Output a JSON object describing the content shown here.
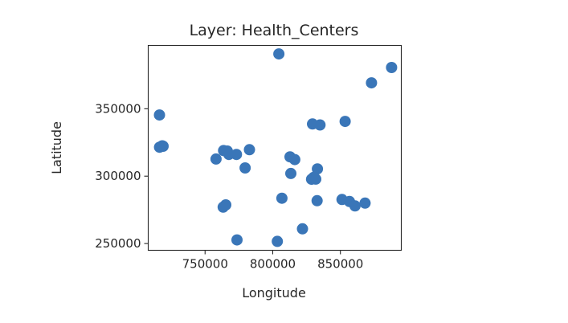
{
  "chart_data": {
    "type": "scatter",
    "title": "Layer: Health_Centers",
    "xlabel": "Longitude",
    "ylabel": "Latitude",
    "xlim": [
      708000,
      895000
    ],
    "ylim": [
      245000,
      397000
    ],
    "xticks": [
      {
        "value": 750000,
        "label": "750000"
      },
      {
        "value": 800000,
        "label": "800000"
      },
      {
        "value": 850000,
        "label": "850000"
      }
    ],
    "yticks": [
      {
        "value": 250000,
        "label": "250000"
      },
      {
        "value": 300000,
        "label": "300000"
      },
      {
        "value": 350000,
        "label": "350000"
      }
    ],
    "grid": false,
    "marker_color": "#3a76b8",
    "points": [
      {
        "x": 804500,
        "y": 390700
      },
      {
        "x": 873000,
        "y": 369200
      },
      {
        "x": 887800,
        "y": 380600
      },
      {
        "x": 716300,
        "y": 345400
      },
      {
        "x": 716400,
        "y": 321500
      },
      {
        "x": 718400,
        "y": 322500
      },
      {
        "x": 719000,
        "y": 322200
      },
      {
        "x": 758100,
        "y": 312700
      },
      {
        "x": 763700,
        "y": 319000
      },
      {
        "x": 766400,
        "y": 318600
      },
      {
        "x": 767600,
        "y": 316100
      },
      {
        "x": 773200,
        "y": 316100
      },
      {
        "x": 779600,
        "y": 306100
      },
      {
        "x": 782800,
        "y": 319600
      },
      {
        "x": 812800,
        "y": 314300
      },
      {
        "x": 816300,
        "y": 312300
      },
      {
        "x": 813400,
        "y": 302000
      },
      {
        "x": 829400,
        "y": 338700
      },
      {
        "x": 834900,
        "y": 338000
      },
      {
        "x": 853500,
        "y": 340600
      },
      {
        "x": 833000,
        "y": 305400
      },
      {
        "x": 830300,
        "y": 299100
      },
      {
        "x": 828700,
        "y": 297700
      },
      {
        "x": 831800,
        "y": 297800
      },
      {
        "x": 806800,
        "y": 283600
      },
      {
        "x": 832800,
        "y": 281800
      },
      {
        "x": 851200,
        "y": 282700
      },
      {
        "x": 856700,
        "y": 281200
      },
      {
        "x": 860800,
        "y": 277900
      },
      {
        "x": 868200,
        "y": 280000
      },
      {
        "x": 765300,
        "y": 278700
      },
      {
        "x": 763400,
        "y": 277000
      },
      {
        "x": 822000,
        "y": 260900
      },
      {
        "x": 773600,
        "y": 252700
      },
      {
        "x": 803400,
        "y": 251600
      }
    ]
  }
}
